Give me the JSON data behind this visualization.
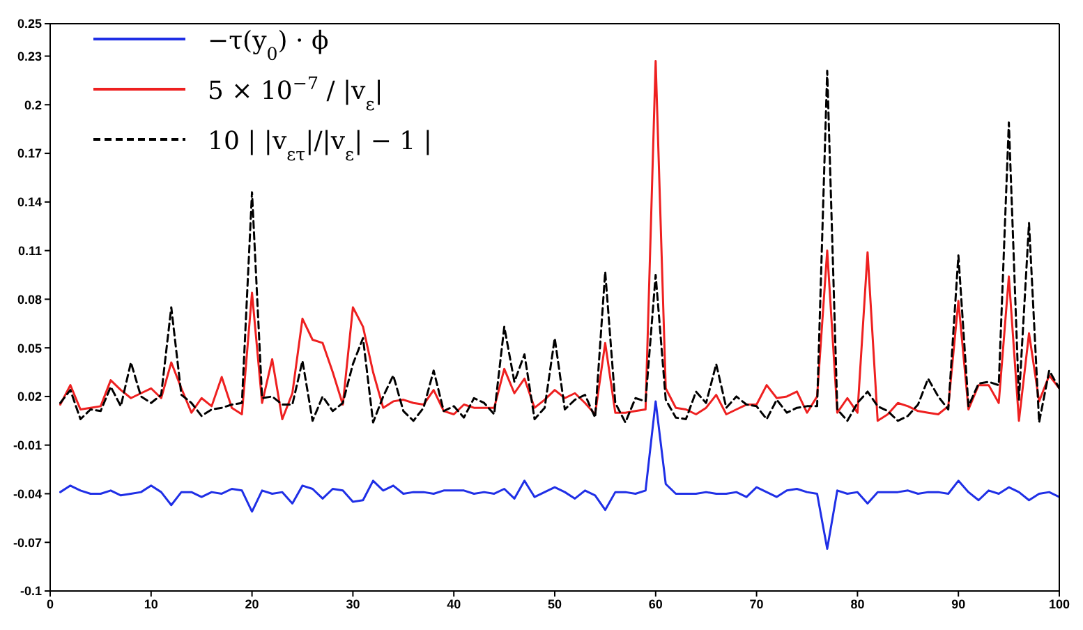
{
  "chart_data": {
    "type": "line",
    "x": [
      1,
      2,
      3,
      4,
      5,
      6,
      7,
      8,
      9,
      10,
      11,
      12,
      13,
      14,
      15,
      16,
      17,
      18,
      19,
      20,
      21,
      22,
      23,
      24,
      25,
      26,
      27,
      28,
      29,
      30,
      31,
      32,
      33,
      34,
      35,
      36,
      37,
      38,
      39,
      40,
      41,
      42,
      43,
      44,
      45,
      46,
      47,
      48,
      49,
      50,
      51,
      52,
      53,
      54,
      55,
      56,
      57,
      58,
      59,
      60,
      61,
      62,
      63,
      64,
      65,
      66,
      67,
      68,
      69,
      70,
      71,
      72,
      73,
      74,
      75,
      76,
      77,
      78,
      79,
      80,
      81,
      82,
      83,
      84,
      85,
      86,
      87,
      88,
      89,
      90,
      91,
      92,
      93,
      94,
      95,
      96,
      97,
      98,
      99,
      100
    ],
    "series": [
      {
        "name": "−τ(y$_{0}$) · ϕ",
        "color": "#1f2fe6",
        "line_style": "solid",
        "values": [
          -0.039,
          -0.035,
          -0.038,
          -0.04,
          -0.04,
          -0.038,
          -0.041,
          -0.04,
          -0.039,
          -0.035,
          -0.039,
          -0.047,
          -0.039,
          -0.039,
          -0.042,
          -0.039,
          -0.04,
          -0.037,
          -0.038,
          -0.051,
          -0.038,
          -0.04,
          -0.039,
          -0.046,
          -0.035,
          -0.037,
          -0.043,
          -0.037,
          -0.038,
          -0.045,
          -0.044,
          -0.032,
          -0.038,
          -0.035,
          -0.04,
          -0.039,
          -0.039,
          -0.04,
          -0.038,
          -0.038,
          -0.038,
          -0.04,
          -0.039,
          -0.04,
          -0.037,
          -0.043,
          -0.032,
          -0.042,
          -0.039,
          -0.036,
          -0.039,
          -0.043,
          -0.038,
          -0.041,
          -0.05,
          -0.039,
          -0.039,
          -0.04,
          -0.038,
          0.017,
          -0.034,
          -0.04,
          -0.04,
          -0.04,
          -0.039,
          -0.04,
          -0.04,
          -0.039,
          -0.042,
          -0.036,
          -0.039,
          -0.042,
          -0.038,
          -0.037,
          -0.039,
          -0.04,
          -0.074,
          -0.038,
          -0.04,
          -0.039,
          -0.046,
          -0.039,
          -0.039,
          -0.039,
          -0.038,
          -0.04,
          -0.039,
          -0.039,
          -0.04,
          -0.032,
          -0.039,
          -0.044,
          -0.038,
          -0.04,
          -0.036,
          -0.039,
          -0.044,
          -0.04,
          -0.039,
          -0.042
        ]
      },
      {
        "name": "5 × 10$^{−7}$ / |v$_{ε}$|",
        "color": "#ee2020",
        "line_style": "solid",
        "values": [
          0.015,
          0.027,
          0.012,
          0.013,
          0.014,
          0.03,
          0.024,
          0.019,
          0.022,
          0.025,
          0.019,
          0.041,
          0.025,
          0.01,
          0.019,
          0.014,
          0.032,
          0.013,
          0.009,
          0.084,
          0.016,
          0.043,
          0.006,
          0.022,
          0.068,
          0.055,
          0.053,
          0.035,
          0.015,
          0.075,
          0.063,
          0.035,
          0.013,
          0.017,
          0.018,
          0.016,
          0.015,
          0.024,
          0.011,
          0.009,
          0.015,
          0.013,
          0.013,
          0.013,
          0.037,
          0.022,
          0.031,
          0.013,
          0.018,
          0.024,
          0.019,
          0.022,
          0.016,
          0.009,
          0.053,
          0.01,
          0.01,
          0.011,
          0.012,
          0.227,
          0.025,
          0.013,
          0.012,
          0.009,
          0.013,
          0.021,
          0.009,
          0.012,
          0.015,
          0.015,
          0.027,
          0.019,
          0.02,
          0.023,
          0.01,
          0.02,
          0.11,
          0.01,
          0.019,
          0.01,
          0.109,
          0.005,
          0.009,
          0.016,
          0.014,
          0.011,
          0.01,
          0.009,
          0.014,
          0.079,
          0.012,
          0.027,
          0.027,
          0.016,
          0.094,
          0.005,
          0.059,
          0.017,
          0.033,
          0.025
        ]
      },
      {
        "name": "10 | |v$_{ετ}$|/|v$_{ε}$| − 1 |",
        "color": "#000000",
        "line_style": "dashed",
        "values": [
          0.016,
          0.024,
          0.006,
          0.012,
          0.011,
          0.026,
          0.014,
          0.041,
          0.02,
          0.016,
          0.021,
          0.075,
          0.021,
          0.016,
          0.008,
          0.012,
          0.013,
          0.015,
          0.016,
          0.146,
          0.019,
          0.02,
          0.015,
          0.015,
          0.042,
          0.005,
          0.02,
          0.011,
          0.016,
          0.04,
          0.056,
          0.004,
          0.02,
          0.033,
          0.011,
          0.005,
          0.013,
          0.036,
          0.011,
          0.014,
          0.007,
          0.019,
          0.016,
          0.009,
          0.063,
          0.029,
          0.046,
          0.006,
          0.013,
          0.056,
          0.012,
          0.018,
          0.021,
          0.007,
          0.097,
          0.016,
          0.004,
          0.019,
          0.017,
          0.095,
          0.018,
          0.007,
          0.006,
          0.023,
          0.016,
          0.04,
          0.013,
          0.02,
          0.015,
          0.014,
          0.006,
          0.018,
          0.01,
          0.013,
          0.014,
          0.014,
          0.221,
          0.012,
          0.005,
          0.016,
          0.023,
          0.014,
          0.011,
          0.005,
          0.008,
          0.015,
          0.031,
          0.02,
          0.012,
          0.107,
          0.014,
          0.028,
          0.029,
          0.027,
          0.189,
          0.018,
          0.127,
          0.004,
          0.036,
          0.025
        ]
      }
    ],
    "xlim": [
      0,
      100
    ],
    "xticks": [
      0,
      10,
      20,
      30,
      40,
      50,
      60,
      70,
      80,
      90,
      100
    ],
    "ylim": [
      -0.1,
      0.25
    ],
    "yticks": [
      -0.1,
      -0.07,
      -0.04,
      -0.01,
      0.02,
      0.05,
      0.08,
      0.11,
      0.14,
      0.17,
      0.2,
      0.23,
      0.25
    ],
    "grid": false,
    "legend": "top left"
  }
}
